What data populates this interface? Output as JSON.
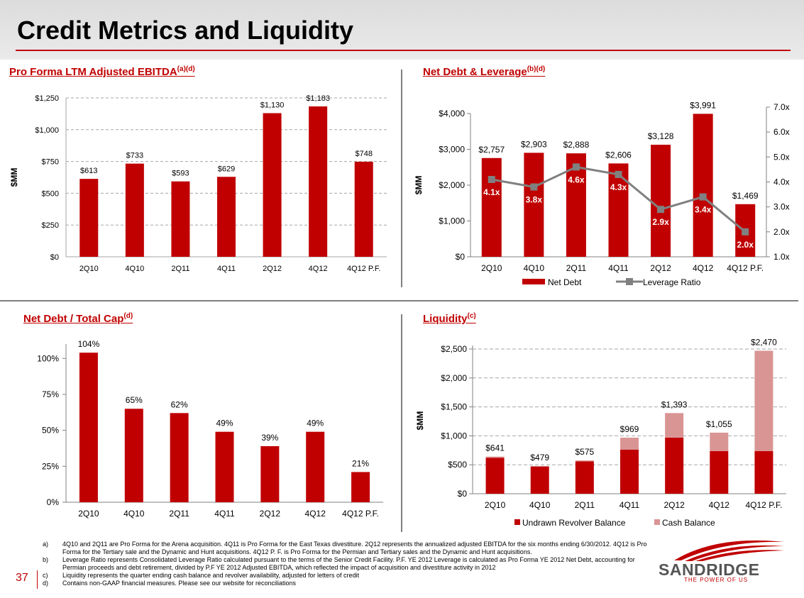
{
  "page": {
    "title": "Credit Metrics and Liquidity",
    "page_number": "37",
    "colors": {
      "red": "#c00000",
      "pink": "#d99594",
      "gray": "#808080"
    }
  },
  "logo": {
    "name": "SANDRIDGE",
    "tagline": "THE POWER OF US"
  },
  "footnotes": [
    {
      "label": "a)",
      "text": "4Q10 and 2Q11 are Pro Forma for the Arena acquisition. 4Q11 is Pro Forma for the East Texas divestiture. 2Q12 represents the annualized adjusted EBITDA for the six months ending 6/30/2012. 4Q12 is Pro Forma for the Tertiary sale and the Dynamic and Hunt acquisitions. 4Q12 P. F. is Pro Forma for the Permian and Tertiary sales and the Dynamic and Hunt acquisitions."
    },
    {
      "label": "b)",
      "text": "Leverage Ratio represents Consolidated Leverage Ratio calculated pursuant to the terms of the Senior Credit Facility. P.F. YE 2012 Leverage is calculated as Pro Forma YE 2012 Net Debt, accounting for Permian proceeds and debt retirement, divided by P.F YE 2012 Adjusted EBITDA, which reflected the impact of acquisition and divestiture activity in 2012"
    },
    {
      "label": "c)",
      "text": "Liquidity represents the quarter ending cash balance and revolver availability, adjusted for letters of credit"
    },
    {
      "label": "d)",
      "text": "Contains non-GAAP financial measures. Please see our website for reconciliations"
    }
  ],
  "chart_data": [
    {
      "id": "ebitda",
      "type": "bar",
      "title": "Pro Forma LTM Adjusted EBITDA",
      "title_sup": "(a)(d)",
      "ylabel": "$MM",
      "categories": [
        "2Q10",
        "4Q10",
        "2Q11",
        "4Q11",
        "2Q12",
        "4Q12",
        "4Q12 P.F."
      ],
      "values": [
        613,
        733,
        593,
        629,
        1130,
        1183,
        748
      ],
      "value_labels": [
        "$613",
        "$733",
        "$593",
        "$629",
        "$1,130",
        "$1,183",
        "$748"
      ],
      "ylim": [
        0,
        1250
      ],
      "yticks": [
        0,
        250,
        500,
        750,
        1000,
        1250
      ],
      "ytick_labels": [
        "$0",
        "$250",
        "$500",
        "$750",
        "$1,000",
        "$1,250"
      ],
      "grid": true
    },
    {
      "id": "netdebt",
      "type": "bar+line",
      "title": "Net Debt & Leverage",
      "title_sup": "(b)(d)",
      "ylabel": "$MM",
      "categories": [
        "2Q10",
        "4Q10",
        "2Q11",
        "4Q11",
        "2Q12",
        "4Q12",
        "4Q12 P.F."
      ],
      "series": [
        {
          "name": "Net Debt",
          "kind": "bar",
          "axis": "left",
          "values": [
            2757,
            2903,
            2888,
            2606,
            3128,
            3991,
            1469
          ],
          "labels": [
            "$2,757",
            "$2,903",
            "$2,888",
            "$2,606",
            "$3,128",
            "$3,991",
            "$1,469"
          ]
        },
        {
          "name": "Leverage Ratio",
          "kind": "line",
          "axis": "right",
          "values": [
            4.1,
            3.8,
            4.6,
            4.3,
            2.9,
            3.4,
            2.0
          ],
          "labels": [
            "4.1x",
            "3.8x",
            "4.6x",
            "4.3x",
            "2.9x",
            "3.4x",
            "2.0x"
          ]
        }
      ],
      "ylim": [
        0,
        4000
      ],
      "yticks": [
        0,
        1000,
        2000,
        3000,
        4000
      ],
      "ytick_labels": [
        "$0",
        "$1,000",
        "$2,000",
        "$3,000",
        "$4,000"
      ],
      "y2lim": [
        1.0,
        7.0
      ],
      "y2ticks": [
        1,
        2,
        3,
        4,
        5,
        6,
        7
      ],
      "y2tick_labels": [
        "1.0x",
        "2.0x",
        "3.0x",
        "4.0x",
        "5.0x",
        "6.0x",
        "7.0x"
      ],
      "legend": "bottom",
      "grid": false
    },
    {
      "id": "netcap",
      "type": "bar",
      "title": "Net Debt / Total Cap",
      "title_sup": "(d)",
      "categories": [
        "2Q10",
        "4Q10",
        "2Q11",
        "4Q11",
        "2Q12",
        "4Q12",
        "4Q12 P.F."
      ],
      "values": [
        104,
        65,
        62,
        49,
        39,
        49,
        21
      ],
      "value_labels": [
        "104%",
        "65%",
        "62%",
        "49%",
        "39%",
        "49%",
        "21%"
      ],
      "ylim": [
        0,
        110
      ],
      "yticks": [
        0,
        25,
        50,
        75,
        100
      ],
      "ytick_labels": [
        "0%",
        "25%",
        "50%",
        "75%",
        "100%"
      ],
      "grid": false
    },
    {
      "id": "liquidity",
      "type": "stacked-bar",
      "title": "Liquidity",
      "title_sup": "(c)",
      "ylabel": "$MM",
      "categories": [
        "2Q10",
        "4Q10",
        "2Q11",
        "4Q11",
        "2Q12",
        "4Q12",
        "4Q12 P.F."
      ],
      "series": [
        {
          "name": "Undrawn Revolver Balance",
          "values": [
            622,
            470,
            560,
            763,
            970,
            738,
            738
          ]
        },
        {
          "name": "Cash Balance",
          "values": [
            19,
            9,
            15,
            206,
            423,
            317,
            1732
          ]
        }
      ],
      "total_labels": [
        "$641",
        "$479",
        "$575",
        "$969",
        "$1,393",
        "$1,055",
        "$2,470"
      ],
      "ylim": [
        0,
        2500
      ],
      "yticks": [
        0,
        500,
        1000,
        1500,
        2000,
        2500
      ],
      "ytick_labels": [
        "$0",
        "$500",
        "$1,000",
        "$1,500",
        "$2,000",
        "$2,500"
      ],
      "legend": "bottom",
      "grid": true
    }
  ]
}
